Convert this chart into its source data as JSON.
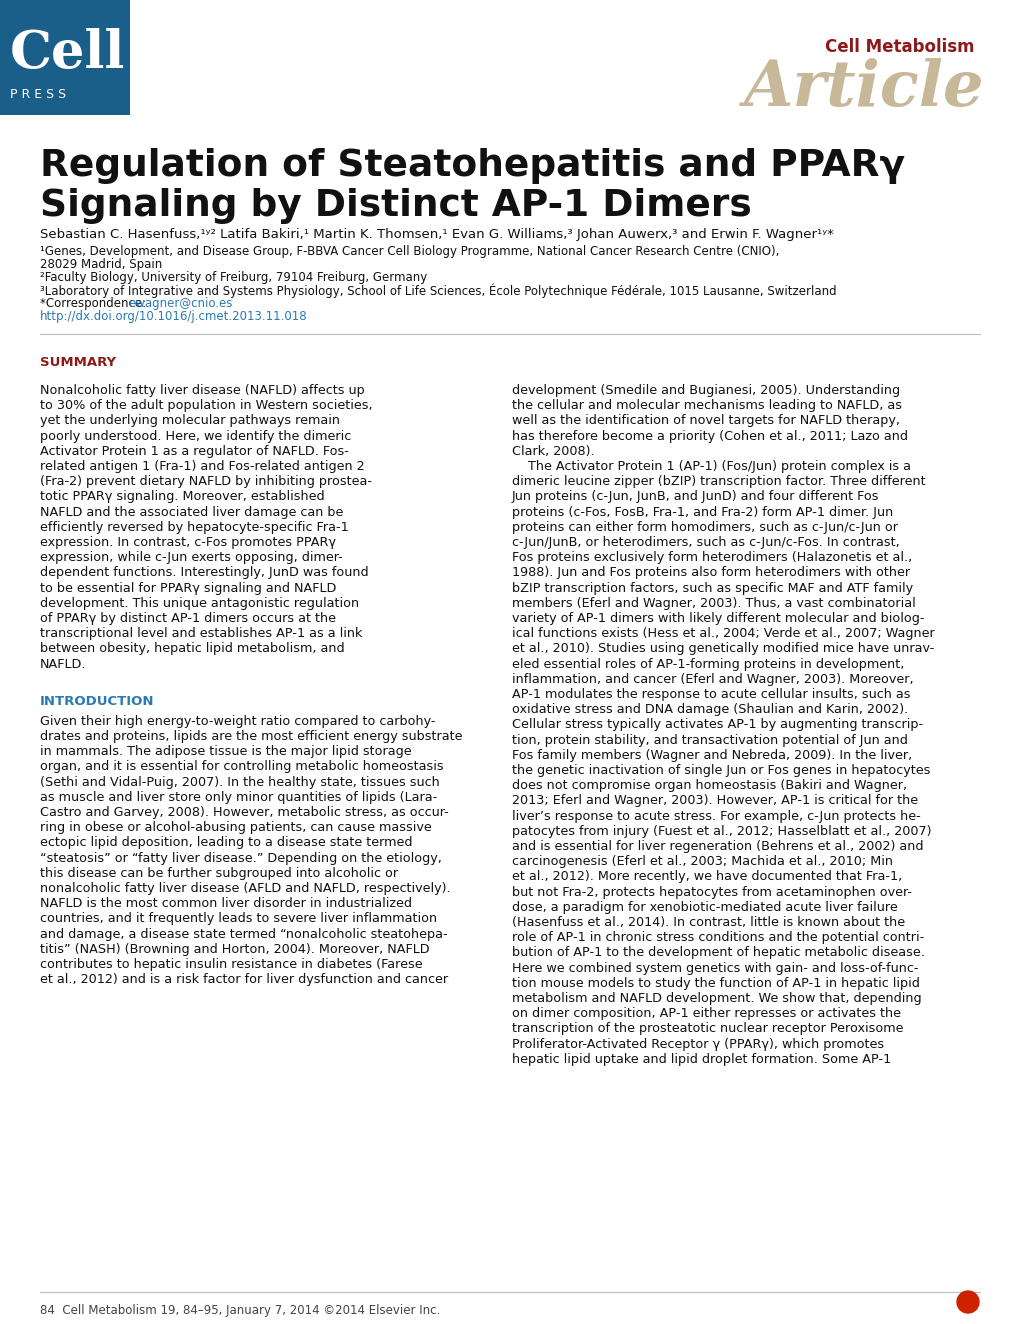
{
  "bg_color": "#ffffff",
  "header_box_color": "#1a5f8a",
  "cell_text": "Cell",
  "press_text": "P R E S S",
  "journal_label": "Cell Metabolism",
  "article_label": "Article",
  "article_color": "#c8b89a",
  "journal_color": "#8b1a1a",
  "title_line1": "Regulation of Steatohepatitis and PPARγ",
  "title_line2": "Signaling by Distinct AP-1 Dimers",
  "authors": "Sebastian C. Hasenfuss,¹ʸ² Latifa Bakiri,¹ Martin K. Thomsen,¹ Evan G. Williams,³ Johan Auwerx,³ and Erwin F. Wagner¹ʸ*",
  "affil1": "¹Genes, Development, and Disease Group, F-BBVA Cancer Cell Biology Programme, National Cancer Research Centre (CNIO),",
  "affil1b": "28029 Madrid, Spain",
  "affil2": "²Faculty Biology, University of Freiburg, 79104 Freiburg, Germany",
  "affil3": "³Laboratory of Integrative and Systems Physiology, School of Life Sciences, École Polytechnique Fédérale, 1015 Lausanne, Switzerland",
  "corr_prefix": "*Correspondence: ",
  "corr_email": "ewagner@cnio.es",
  "doi": "http://dx.doi.org/10.1016/j.cmet.2013.11.018",
  "link_color": "#2a7ab5",
  "summary_head": "SUMMARY",
  "summary_head_color": "#8b1a1a",
  "intro_head": "INTRODUCTION",
  "intro_head_color": "#2a7ab5",
  "footer_text": "84  Cell Metabolism 19, 84–95, January 7, 2014 ©2014 Elsevier Inc.",
  "crossmark_color": "#cc2200",
  "summary_lines": [
    "Nonalcoholic fatty liver disease (NAFLD) affects up",
    "to 30% of the adult population in Western societies,",
    "yet the underlying molecular pathways remain",
    "poorly understood. Here, we identify the dimeric",
    "Activator Protein 1 as a regulator of NAFLD. Fos-",
    "related antigen 1 (Fra-1) and Fos-related antigen 2",
    "(Fra-2) prevent dietary NAFLD by inhibiting prostea-",
    "totic PPARγ signaling. Moreover, established",
    "NAFLD and the associated liver damage can be",
    "efficiently reversed by hepatocyte-specific Fra-1",
    "expression. In contrast, c-Fos promotes PPARγ",
    "expression, while c-Jun exerts opposing, dimer-",
    "dependent functions. Interestingly, JunD was found",
    "to be essential for PPARγ signaling and NAFLD",
    "development. This unique antagonistic regulation",
    "of PPARγ by distinct AP-1 dimers occurs at the",
    "transcriptional level and establishes AP-1 as a link",
    "between obesity, hepatic lipid metabolism, and",
    "NAFLD."
  ],
  "right_lines": [
    "development (Smedile and Bugianesi, 2005). Understanding",
    "the cellular and molecular mechanisms leading to NAFLD, as",
    "well as the identification of novel targets for NAFLD therapy,",
    "has therefore become a priority (Cohen et al., 2011; Lazo and",
    "Clark, 2008).",
    "    The Activator Protein 1 (AP-1) (Fos/Jun) protein complex is a",
    "dimeric leucine zipper (bZIP) transcription factor. Three different",
    "Jun proteins (c-Jun, JunB, and JunD) and four different Fos",
    "proteins (c-Fos, FosB, Fra-1, and Fra-2) form AP-1 dimer. Jun",
    "proteins can either form homodimers, such as c-Jun/c-Jun or",
    "c-Jun/JunB, or heterodimers, such as c-Jun/c-Fos. In contrast,",
    "Fos proteins exclusively form heterodimers (Halazonetis et al.,",
    "1988). Jun and Fos proteins also form heterodimers with other",
    "bZIP transcription factors, such as specific MAF and ATF family",
    "members (Eferl and Wagner, 2003). Thus, a vast combinatorial",
    "variety of AP-1 dimers with likely different molecular and biolog-",
    "ical functions exists (Hess et al., 2004; Verde et al., 2007; Wagner",
    "et al., 2010). Studies using genetically modified mice have unrav-",
    "eled essential roles of AP-1-forming proteins in development,",
    "inflammation, and cancer (Eferl and Wagner, 2003). Moreover,",
    "AP-1 modulates the response to acute cellular insults, such as",
    "oxidative stress and DNA damage (Shaulian and Karin, 2002).",
    "Cellular stress typically activates AP-1 by augmenting transcrip-",
    "tion, protein stability, and transactivation potential of Jun and",
    "Fos family members (Wagner and Nebreda, 2009). In the liver,",
    "the genetic inactivation of single Jun or Fos genes in hepatocytes",
    "does not compromise organ homeostasis (Bakiri and Wagner,",
    "2013; Eferl and Wagner, 2003). However, AP-1 is critical for the",
    "liver’s response to acute stress. For example, c-Jun protects he-",
    "patocytes from injury (Fuest et al., 2012; Hasselblatt et al., 2007)",
    "and is essential for liver regeneration (Behrens et al., 2002) and",
    "carcinogenesis (Eferl et al., 2003; Machida et al., 2010; Min",
    "et al., 2012). More recently, we have documented that Fra-1,",
    "but not Fra-2, protects hepatocytes from acetaminophen over-",
    "dose, a paradigm for xenobiotic-mediated acute liver failure",
    "(Hasenfuss et al., 2014). In contrast, little is known about the",
    "role of AP-1 in chronic stress conditions and the potential contri-",
    "bution of AP-1 to the development of hepatic metabolic disease.",
    "Here we combined system genetics with gain- and loss-of-func-",
    "tion mouse models to study the function of AP-1 in hepatic lipid",
    "metabolism and NAFLD development. We show that, depending",
    "on dimer composition, AP-1 either represses or activates the",
    "transcription of the prosteatotic nuclear receptor Peroxisome",
    "Proliferator-Activated Receptor γ (PPARγ), which promotes",
    "hepatic lipid uptake and lipid droplet formation. Some AP-1"
  ],
  "intro_left_lines": [
    "Given their high energy-to-weight ratio compared to carbohy-",
    "drates and proteins, lipids are the most efficient energy substrate",
    "in mammals. The adipose tissue is the major lipid storage",
    "organ, and it is essential for controlling metabolic homeostasis",
    "(Sethi and Vidal-Puig, 2007). In the healthy state, tissues such",
    "as muscle and liver store only minor quantities of lipids (Lara-",
    "Castro and Garvey, 2008). However, metabolic stress, as occur-",
    "ring in obese or alcohol-abusing patients, can cause massive",
    "ectopic lipid deposition, leading to a disease state termed",
    "“steatosis” or “fatty liver disease.” Depending on the etiology,",
    "this disease can be further subgrouped into alcoholic or",
    "nonalcoholic fatty liver disease (AFLD and NAFLD, respectively).",
    "NAFLD is the most common liver disorder in industrialized",
    "countries, and it frequently leads to severe liver inflammation",
    "and damage, a disease state termed “nonalcoholic steatohepa-",
    "titis” (NASH) (Browning and Horton, 2004). Moreover, NAFLD",
    "contributes to hepatic insulin resistance in diabetes (Farese",
    "et al., 2012) and is a risk factor for liver dysfunction and cancer"
  ]
}
